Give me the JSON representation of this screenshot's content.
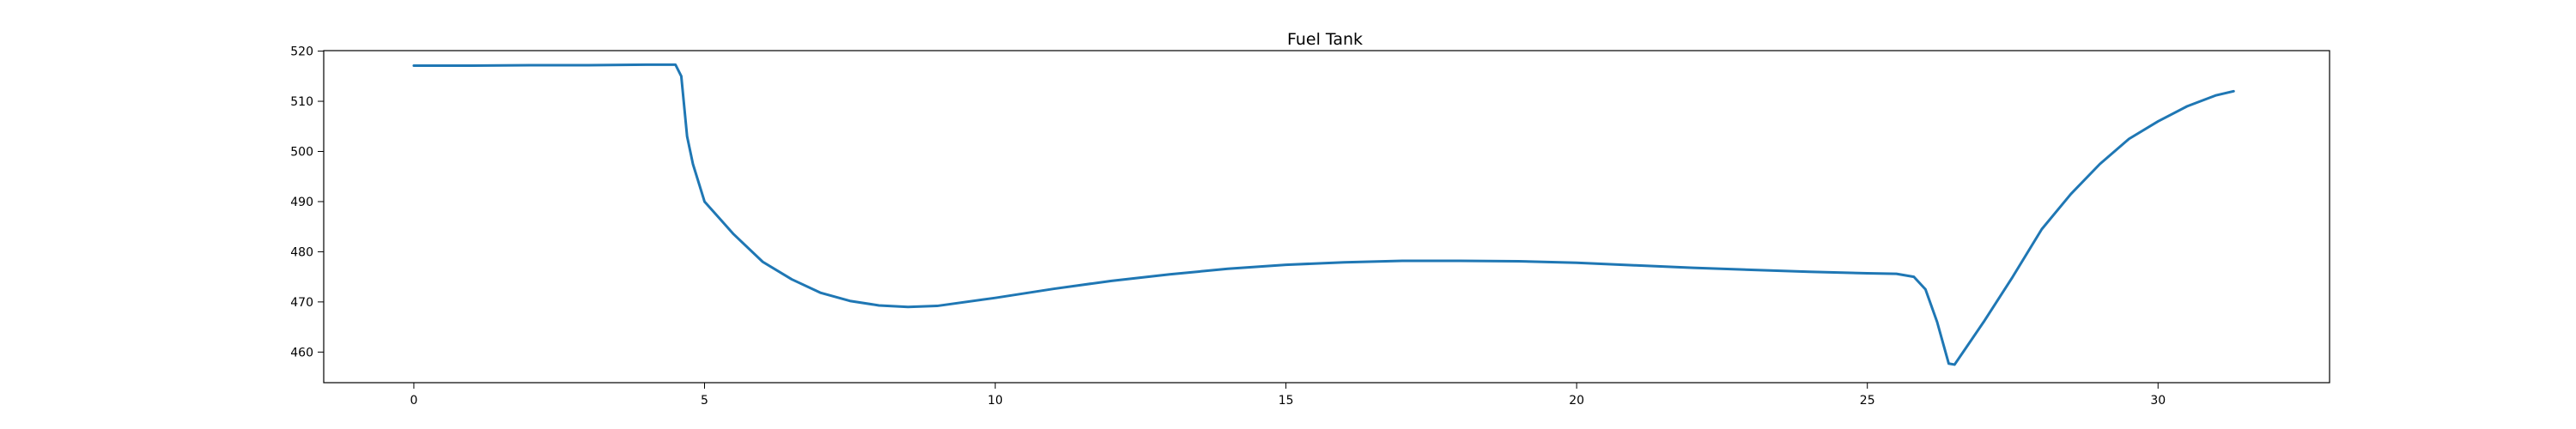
{
  "chart_data": {
    "type": "line",
    "title": "Fuel Tank",
    "xlabel": "",
    "ylabel": "",
    "xlim": [
      -1.55,
      32.95
    ],
    "ylim": [
      453.9,
      520.1
    ],
    "xticks": [
      0,
      5,
      10,
      15,
      20,
      25,
      30
    ],
    "yticks": [
      460,
      470,
      480,
      490,
      500,
      510,
      520
    ],
    "grid": false,
    "legend": "none",
    "colors": {
      "line": "#1f77b4",
      "axes": "#000000",
      "background": "#ffffff"
    },
    "series": [
      {
        "x": [
          0,
          1,
          2,
          3,
          4,
          4.5,
          4.6,
          4.7,
          4.8,
          5.0,
          5.5,
          6.0,
          6.5,
          7.0,
          7.5,
          8.0,
          8.5,
          9.0,
          10.0,
          11.0,
          12.0,
          13.0,
          14.0,
          15.0,
          16.0,
          17.0,
          18.0,
          19.0,
          20.0,
          21.0,
          22.0,
          23.0,
          24.0,
          25.0,
          25.5,
          25.8,
          26.0,
          26.2,
          26.4,
          26.5,
          27.0,
          27.5,
          28.0,
          28.5,
          29.0,
          29.5,
          30.0,
          30.5,
          31.0,
          31.3
        ],
        "y": [
          517.1,
          517.1,
          517.2,
          517.2,
          517.3,
          517.3,
          515.0,
          503.0,
          497.5,
          490.0,
          483.5,
          478.0,
          474.5,
          471.8,
          470.2,
          469.3,
          469.0,
          469.2,
          470.8,
          472.6,
          474.2,
          475.5,
          476.6,
          477.4,
          477.9,
          478.2,
          478.2,
          478.1,
          477.8,
          477.3,
          476.8,
          476.4,
          476.0,
          475.7,
          475.6,
          475.0,
          472.5,
          466.0,
          457.7,
          457.5,
          466.0,
          475.0,
          484.5,
          491.5,
          497.5,
          502.5,
          506.0,
          509.0,
          511.2,
          512.0
        ]
      }
    ]
  }
}
